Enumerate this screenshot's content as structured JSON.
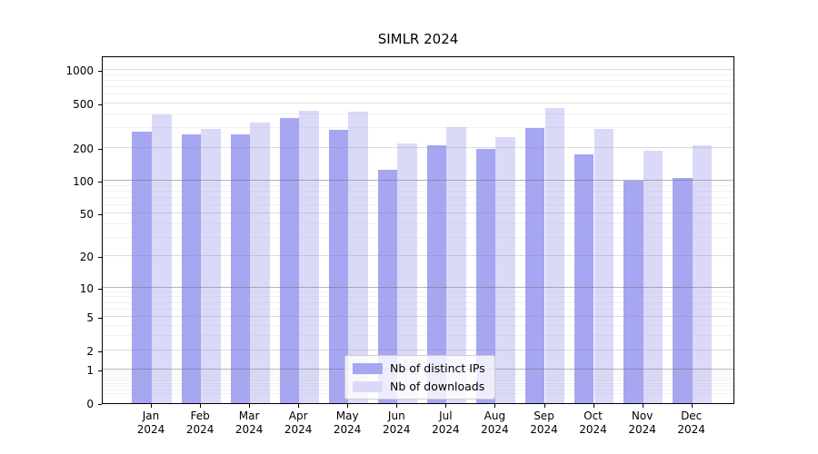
{
  "title": "SIMLR 2024",
  "colors": {
    "ips_bar": "#a6a6f2",
    "downloads_bar": "#dadaf8",
    "axis": "#000000",
    "grid_major": "rgba(110,110,110,0.50)",
    "grid_mid": "rgba(140,140,140,0.30)",
    "grid_minor": "rgba(165,165,165,0.16)",
    "background": "#ffffff"
  },
  "legend": {
    "items": [
      {
        "label": "Nb of distinct IPs",
        "series": "ips_bar"
      },
      {
        "label": "Nb of downloads",
        "series": "downloads_bar"
      }
    ]
  },
  "chart_data": {
    "type": "bar",
    "title": "SIMLR 2024",
    "categories": [
      "Jan 2024",
      "Feb 2024",
      "Mar 2024",
      "Apr 2024",
      "May 2024",
      "Jun 2024",
      "Jul 2024",
      "Aug 2024",
      "Sep 2024",
      "Oct 2024",
      "Nov 2024",
      "Dec 2024"
    ],
    "series": [
      {
        "name": "Nb of distinct IPs",
        "values": [
          280,
          262,
          265,
          368,
          290,
          125,
          210,
          195,
          300,
          175,
          100,
          107
        ]
      },
      {
        "name": "Nb of downloads",
        "values": [
          398,
          294,
          337,
          433,
          422,
          218,
          307,
          249,
          457,
          297,
          189,
          209
        ]
      }
    ],
    "xlabel": "",
    "ylabel": "",
    "y_scale": "log1p",
    "y_ticks": [
      0,
      1,
      2,
      5,
      10,
      20,
      50,
      100,
      200,
      500,
      1000
    ],
    "ylim": [
      0,
      1360
    ],
    "grid": "both-horizontal",
    "legend_position": "lower-center-inside"
  }
}
